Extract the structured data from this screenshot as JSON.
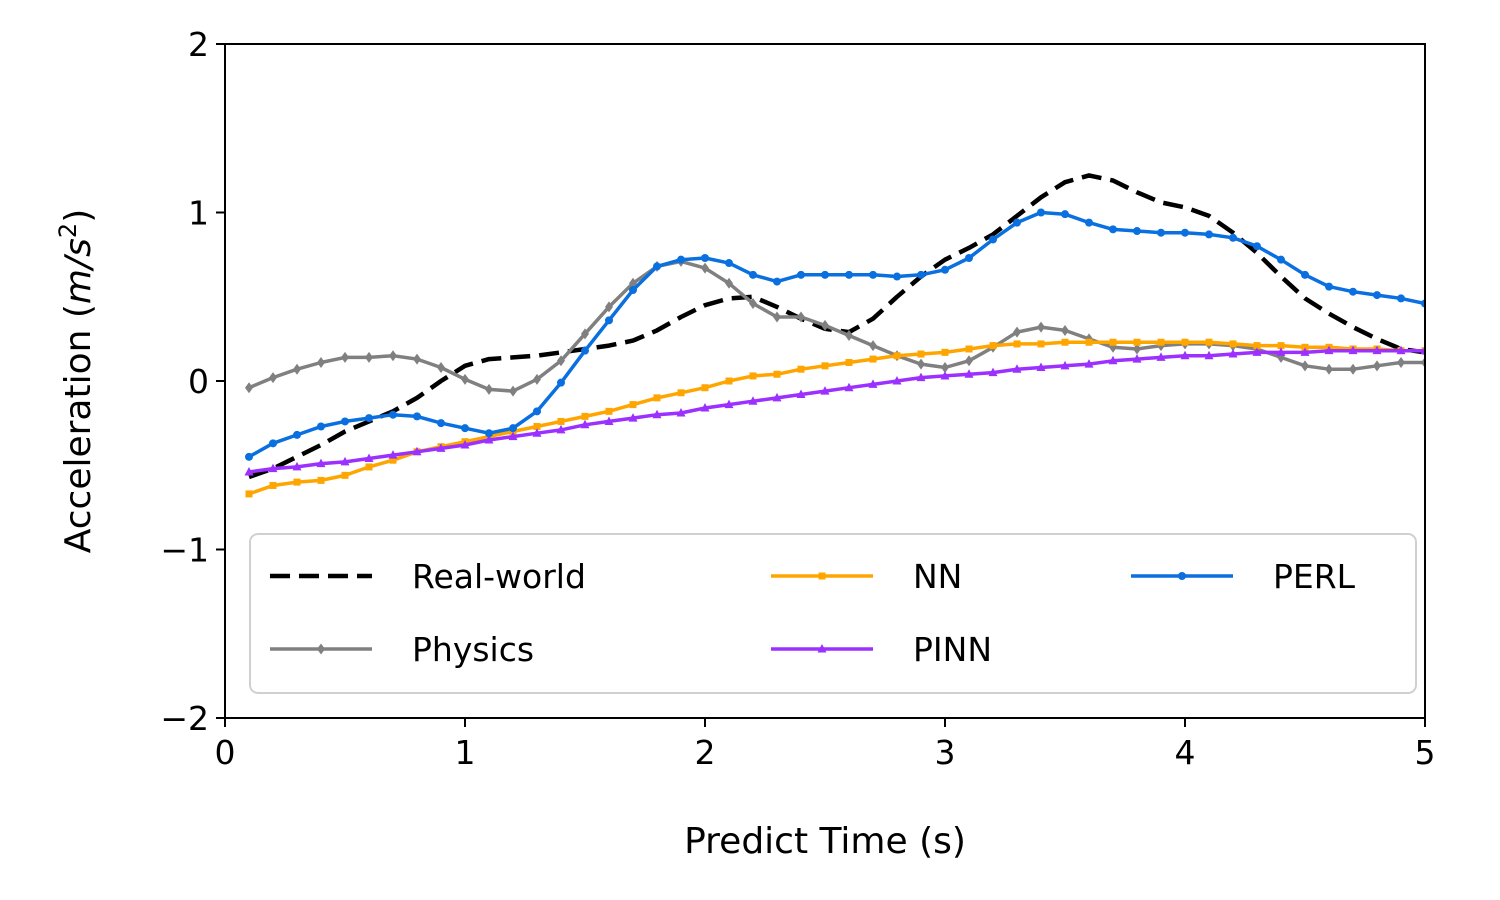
{
  "chart_data": {
    "type": "line",
    "title": "",
    "xlabel": "Predict Time (s)",
    "ylabel_main": "Acceleration (",
    "ylabel_unit_m": "m",
    "ylabel_unit_sep": "/",
    "ylabel_unit_s": "s",
    "ylabel_unit_exp": "2",
    "ylabel_close": ")",
    "xlim": [
      0,
      5
    ],
    "ylim": [
      -2,
      2
    ],
    "xticks": [
      {
        "value": 0,
        "label": "0"
      },
      {
        "value": 1,
        "label": "1"
      },
      {
        "value": 2,
        "label": "2"
      },
      {
        "value": 3,
        "label": "3"
      },
      {
        "value": 4,
        "label": "4"
      },
      {
        "value": 5,
        "label": "5"
      }
    ],
    "yticks": [
      {
        "value": -2,
        "label": "−2"
      },
      {
        "value": -1,
        "label": "−1"
      },
      {
        "value": 0,
        "label": "0"
      },
      {
        "value": 1,
        "label": "1"
      },
      {
        "value": 2,
        "label": "2"
      }
    ],
    "grid": false,
    "legend_position": "lower-left",
    "legend_columns": 3,
    "x": [
      0.1,
      0.2,
      0.3,
      0.4,
      0.5,
      0.6,
      0.7,
      0.8,
      0.9,
      1.0,
      1.1,
      1.2,
      1.3,
      1.4,
      1.5,
      1.6,
      1.7,
      1.8,
      1.9,
      2.0,
      2.1,
      2.2,
      2.3,
      2.4,
      2.5,
      2.6,
      2.7,
      2.8,
      2.9,
      3.0,
      3.1,
      3.2,
      3.3,
      3.4,
      3.5,
      3.6,
      3.7,
      3.8,
      3.9,
      4.0,
      4.1,
      4.2,
      4.3,
      4.4,
      4.5,
      4.6,
      4.7,
      4.8,
      4.9,
      5.0
    ],
    "series": [
      {
        "name": "Real-world",
        "color": "#000000",
        "style": "dashed",
        "marker": "none",
        "values": [
          -0.57,
          -0.52,
          -0.45,
          -0.38,
          -0.3,
          -0.24,
          -0.18,
          -0.1,
          0.0,
          0.09,
          0.13,
          0.14,
          0.15,
          0.17,
          0.19,
          0.21,
          0.24,
          0.3,
          0.38,
          0.45,
          0.49,
          0.5,
          0.44,
          0.37,
          0.31,
          0.29,
          0.37,
          0.5,
          0.62,
          0.72,
          0.79,
          0.87,
          0.98,
          1.09,
          1.18,
          1.22,
          1.19,
          1.12,
          1.06,
          1.03,
          0.98,
          0.88,
          0.76,
          0.62,
          0.49,
          0.4,
          0.32,
          0.25,
          0.19,
          0.17
        ]
      },
      {
        "name": "Physics",
        "color": "#808080",
        "style": "solid",
        "marker": "diamond",
        "values": [
          -0.04,
          0.02,
          0.07,
          0.11,
          0.14,
          0.14,
          0.15,
          0.13,
          0.08,
          0.01,
          -0.05,
          -0.06,
          0.01,
          0.12,
          0.28,
          0.44,
          0.58,
          0.68,
          0.71,
          0.67,
          0.58,
          0.46,
          0.38,
          0.38,
          0.33,
          0.27,
          0.21,
          0.15,
          0.1,
          0.08,
          0.12,
          0.2,
          0.29,
          0.32,
          0.3,
          0.25,
          0.2,
          0.19,
          0.21,
          0.22,
          0.22,
          0.21,
          0.19,
          0.14,
          0.09,
          0.07,
          0.07,
          0.09,
          0.11,
          0.11
        ]
      },
      {
        "name": "NN",
        "color": "#ffa500",
        "style": "solid",
        "marker": "square",
        "values": [
          -0.67,
          -0.62,
          -0.6,
          -0.59,
          -0.56,
          -0.51,
          -0.47,
          -0.42,
          -0.39,
          -0.36,
          -0.33,
          -0.3,
          -0.27,
          -0.24,
          -0.21,
          -0.18,
          -0.14,
          -0.1,
          -0.07,
          -0.04,
          0.0,
          0.03,
          0.04,
          0.07,
          0.09,
          0.11,
          0.13,
          0.15,
          0.16,
          0.17,
          0.19,
          0.21,
          0.22,
          0.22,
          0.23,
          0.23,
          0.23,
          0.23,
          0.23,
          0.23,
          0.23,
          0.22,
          0.21,
          0.21,
          0.2,
          0.2,
          0.19,
          0.19,
          0.18,
          0.18
        ]
      },
      {
        "name": "PINN",
        "color": "#9b30ff",
        "style": "solid",
        "marker": "triangle",
        "values": [
          -0.54,
          -0.52,
          -0.51,
          -0.49,
          -0.48,
          -0.46,
          -0.44,
          -0.42,
          -0.4,
          -0.38,
          -0.35,
          -0.33,
          -0.31,
          -0.29,
          -0.26,
          -0.24,
          -0.22,
          -0.2,
          -0.19,
          -0.16,
          -0.14,
          -0.12,
          -0.1,
          -0.08,
          -0.06,
          -0.04,
          -0.02,
          0.0,
          0.02,
          0.03,
          0.04,
          0.05,
          0.07,
          0.08,
          0.09,
          0.1,
          0.12,
          0.13,
          0.14,
          0.15,
          0.15,
          0.16,
          0.17,
          0.17,
          0.17,
          0.18,
          0.18,
          0.18,
          0.18,
          0.18
        ]
      },
      {
        "name": "PERL",
        "color": "#0a6fdf",
        "style": "solid",
        "marker": "circle",
        "values": [
          -0.45,
          -0.37,
          -0.32,
          -0.27,
          -0.24,
          -0.22,
          -0.2,
          -0.21,
          -0.25,
          -0.28,
          -0.31,
          -0.28,
          -0.18,
          -0.01,
          0.18,
          0.36,
          0.54,
          0.68,
          0.72,
          0.73,
          0.7,
          0.63,
          0.59,
          0.63,
          0.63,
          0.63,
          0.63,
          0.62,
          0.63,
          0.66,
          0.73,
          0.84,
          0.94,
          1.0,
          0.99,
          0.94,
          0.9,
          0.89,
          0.88,
          0.88,
          0.87,
          0.85,
          0.8,
          0.72,
          0.63,
          0.56,
          0.53,
          0.51,
          0.49,
          0.46
        ]
      }
    ]
  }
}
